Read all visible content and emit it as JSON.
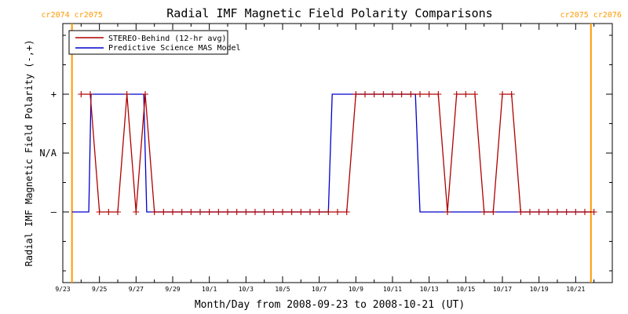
{
  "chart_data": {
    "type": "line",
    "title": "Radial IMF Magnetic Field Polarity Comparisons",
    "xlabel": "Month/Day from 2008-09-23 to 2008-10-21 (UT)",
    "ylabel": "Radial IMF Magnetic Field Polarity (-,+)",
    "xlim": [
      "2008-09-23",
      "2008-10-23"
    ],
    "x_tick_labels": [
      "9/23",
      "9/25",
      "9/27",
      "9/29",
      "10/1",
      "10/3",
      "10/5",
      "10/7",
      "10/9",
      "10/11",
      "10/13",
      "10/15",
      "10/17",
      "10/19",
      "10/21"
    ],
    "y_tick_labels": [
      "+",
      "N/A",
      "–"
    ],
    "y_categories": {
      "plus": "+",
      "na": "N/A",
      "minus": "–"
    },
    "grid": false,
    "legend_position": "top-left",
    "carrington_markers": [
      {
        "date": "2008-09-23T12:00",
        "left_label": "cr2074",
        "right_label": "cr2075",
        "color": "#ff9900"
      },
      {
        "date": "2008-10-21T20:00",
        "left_label": "cr2075",
        "right_label": "cr2076",
        "color": "#ff9900"
      }
    ],
    "series": [
      {
        "name": "STEREO-Behind (12-hr avg)",
        "color": "#b00000",
        "marker": "+",
        "points": [
          [
            "2008-09-24T00:00",
            "+"
          ],
          [
            "2008-09-24T12:00",
            "+"
          ],
          [
            "2008-09-25T00:00",
            "–"
          ],
          [
            "2008-09-25T12:00",
            "–"
          ],
          [
            "2008-09-26T00:00",
            "–"
          ],
          [
            "2008-09-26T12:00",
            "+"
          ],
          [
            "2008-09-27T00:00",
            "–"
          ],
          [
            "2008-09-27T12:00",
            "+"
          ],
          [
            "2008-09-28T00:00",
            "–"
          ],
          [
            "2008-09-28T12:00",
            "–"
          ],
          [
            "2008-09-29T00:00",
            "–"
          ],
          [
            "2008-09-29T12:00",
            "–"
          ],
          [
            "2008-09-30T00:00",
            "–"
          ],
          [
            "2008-09-30T12:00",
            "–"
          ],
          [
            "2008-10-01T00:00",
            "–"
          ],
          [
            "2008-10-01T12:00",
            "–"
          ],
          [
            "2008-10-02T00:00",
            "–"
          ],
          [
            "2008-10-02T12:00",
            "–"
          ],
          [
            "2008-10-03T00:00",
            "–"
          ],
          [
            "2008-10-03T12:00",
            "–"
          ],
          [
            "2008-10-04T00:00",
            "–"
          ],
          [
            "2008-10-04T12:00",
            "–"
          ],
          [
            "2008-10-05T00:00",
            "–"
          ],
          [
            "2008-10-05T12:00",
            "–"
          ],
          [
            "2008-10-06T00:00",
            "–"
          ],
          [
            "2008-10-06T12:00",
            "–"
          ],
          [
            "2008-10-07T00:00",
            "–"
          ],
          [
            "2008-10-07T12:00",
            "–"
          ],
          [
            "2008-10-08T00:00",
            "–"
          ],
          [
            "2008-10-08T12:00",
            "–"
          ],
          [
            "2008-10-09T00:00",
            "+"
          ],
          [
            "2008-10-09T12:00",
            "+"
          ],
          [
            "2008-10-10T00:00",
            "+"
          ],
          [
            "2008-10-10T12:00",
            "+"
          ],
          [
            "2008-10-11T00:00",
            "+"
          ],
          [
            "2008-10-11T12:00",
            "+"
          ],
          [
            "2008-10-12T00:00",
            "+"
          ],
          [
            "2008-10-12T12:00",
            "+"
          ],
          [
            "2008-10-13T00:00",
            "+"
          ],
          [
            "2008-10-13T12:00",
            "+"
          ],
          [
            "2008-10-14T00:00",
            "–"
          ],
          [
            "2008-10-14T12:00",
            "+"
          ],
          [
            "2008-10-15T00:00",
            "+"
          ],
          [
            "2008-10-15T12:00",
            "+"
          ],
          [
            "2008-10-16T00:00",
            "–"
          ],
          [
            "2008-10-16T12:00",
            "–"
          ],
          [
            "2008-10-17T00:00",
            "+"
          ],
          [
            "2008-10-17T12:00",
            "+"
          ],
          [
            "2008-10-18T00:00",
            "–"
          ],
          [
            "2008-10-18T12:00",
            "–"
          ],
          [
            "2008-10-19T00:00",
            "–"
          ],
          [
            "2008-10-19T12:00",
            "–"
          ],
          [
            "2008-10-20T00:00",
            "–"
          ],
          [
            "2008-10-20T12:00",
            "–"
          ],
          [
            "2008-10-21T00:00",
            "–"
          ],
          [
            "2008-10-21T12:00",
            "–"
          ],
          [
            "2008-10-22T00:00",
            "–"
          ]
        ]
      },
      {
        "name": "Predictive Science MAS Model",
        "color": "#0000cc",
        "marker": "none",
        "points": [
          [
            "2008-09-23T12:00",
            "–"
          ],
          [
            "2008-09-24T10:00",
            "–"
          ],
          [
            "2008-09-24T13:00",
            "+"
          ],
          [
            "2008-09-27T10:00",
            "+"
          ],
          [
            "2008-09-27T14:00",
            "–"
          ],
          [
            "2008-10-07T12:00",
            "–"
          ],
          [
            "2008-10-07T17:00",
            "+"
          ],
          [
            "2008-10-12T06:00",
            "+"
          ],
          [
            "2008-10-12T12:00",
            "–"
          ],
          [
            "2008-10-21T20:00",
            "–"
          ]
        ]
      }
    ]
  }
}
